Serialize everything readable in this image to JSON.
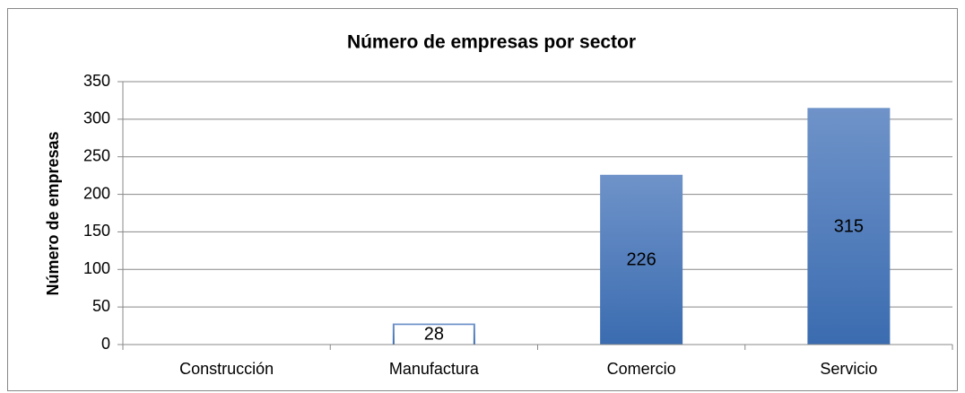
{
  "chart_data": {
    "type": "bar",
    "title": "Número de empresas por sector",
    "y_label": "Número de empresas",
    "categories": [
      "Construcción",
      "Manufactura",
      "Comercio",
      "Servicio"
    ],
    "values": [
      null,
      28,
      226,
      315
    ],
    "color": "#4f7dbf",
    "ylim": [
      0,
      350
    ],
    "yticks": [
      0,
      50,
      100,
      150,
      200,
      250,
      300,
      350
    ],
    "grid": true
  }
}
